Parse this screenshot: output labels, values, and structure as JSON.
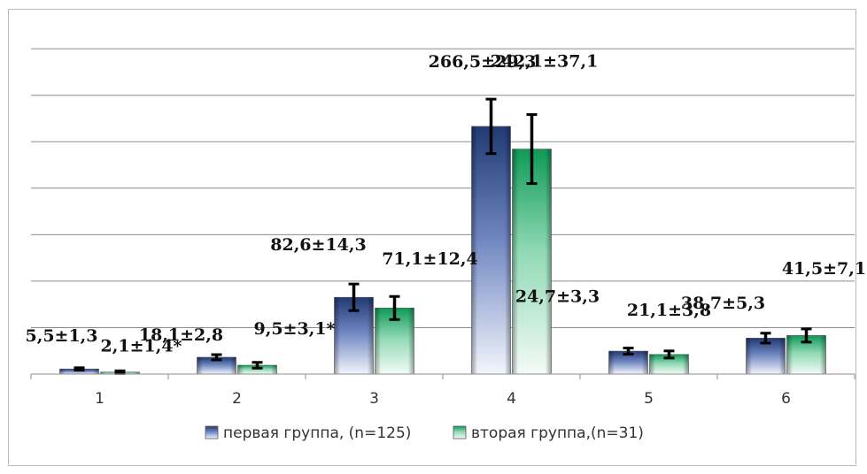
{
  "chart_data": {
    "type": "bar",
    "categories": [
      "1",
      "2",
      "3",
      "4",
      "5",
      "6"
    ],
    "series": [
      {
        "name": "первая группа, (n=125)",
        "values": [
          5.5,
          18.1,
          82.6,
          266.5,
          24.7,
          38.7
        ],
        "errors": [
          1.3,
          2.8,
          14.3,
          29.3,
          3.3,
          5.3
        ],
        "labels": [
          "5,5±1,3",
          "18,1±2,8",
          "82,6±14,3",
          "266,5±29,3",
          "24,7±3,3",
          "38,7±5,3"
        ],
        "color": "#2f4f8f"
      },
      {
        "name": "вторая группа,(n=31)",
        "values": [
          2.1,
          9.5,
          71.1,
          242.1,
          21.1,
          41.5
        ],
        "errors": [
          1.4,
          3.1,
          12.4,
          37.1,
          3.8,
          7.1
        ],
        "labels": [
          "2,1±1,4*",
          "9,5±3,1*",
          "71,1±12,4",
          "242,1±37,1",
          "21,1±3,8",
          "41,5±7,1"
        ],
        "color": "#1aa561"
      }
    ],
    "grid": true,
    "legend": "bottom"
  }
}
